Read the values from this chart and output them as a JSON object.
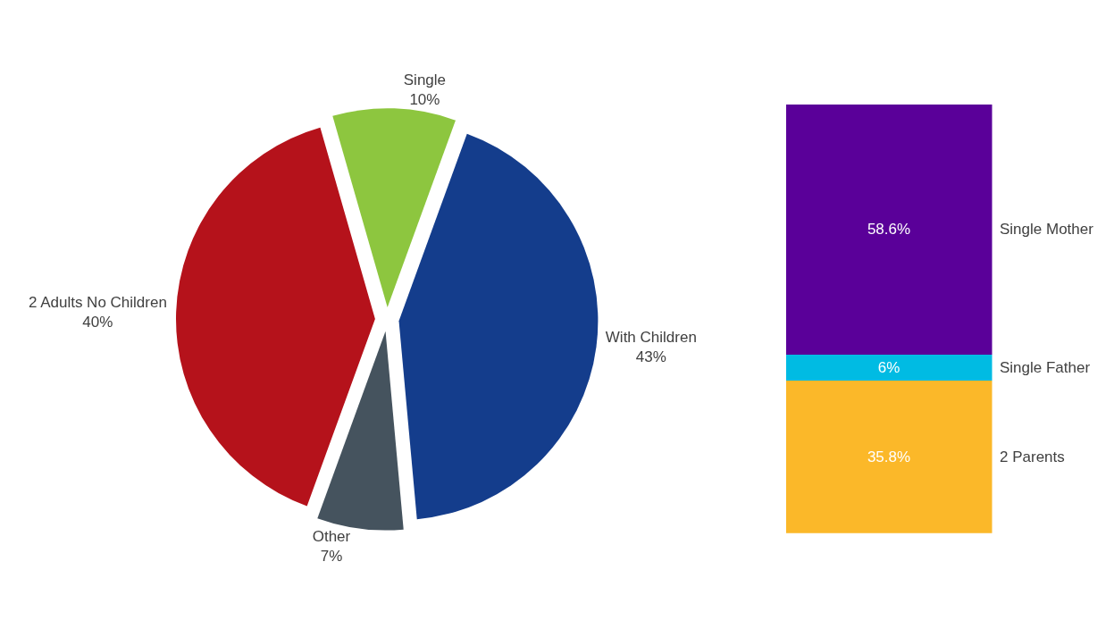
{
  "chart_data": [
    {
      "type": "pie",
      "categories": [
        "Single",
        "With Children",
        "Other",
        "2 Adults No Children"
      ],
      "values": [
        10,
        43,
        7,
        40
      ],
      "value_labels": [
        "10%",
        "43%",
        "7%",
        "40%"
      ],
      "colors": [
        "#8dc63f",
        "#143d8c",
        "#45535e",
        "#b5121b"
      ]
    },
    {
      "type": "bar",
      "stacked": true,
      "categories": [
        null
      ],
      "series": [
        {
          "name": "2 Parents",
          "color": "#fbb829",
          "values": [
            35.8
          ],
          "value_labels": [
            "35.8%"
          ]
        },
        {
          "name": "Single Father",
          "color": "#00bbe3",
          "values": [
            6
          ],
          "value_labels": [
            "6%"
          ]
        },
        {
          "name": "Single Mother",
          "color": "#5a0099",
          "values": [
            58.6
          ],
          "value_labels": [
            "58.6%"
          ]
        }
      ]
    }
  ]
}
